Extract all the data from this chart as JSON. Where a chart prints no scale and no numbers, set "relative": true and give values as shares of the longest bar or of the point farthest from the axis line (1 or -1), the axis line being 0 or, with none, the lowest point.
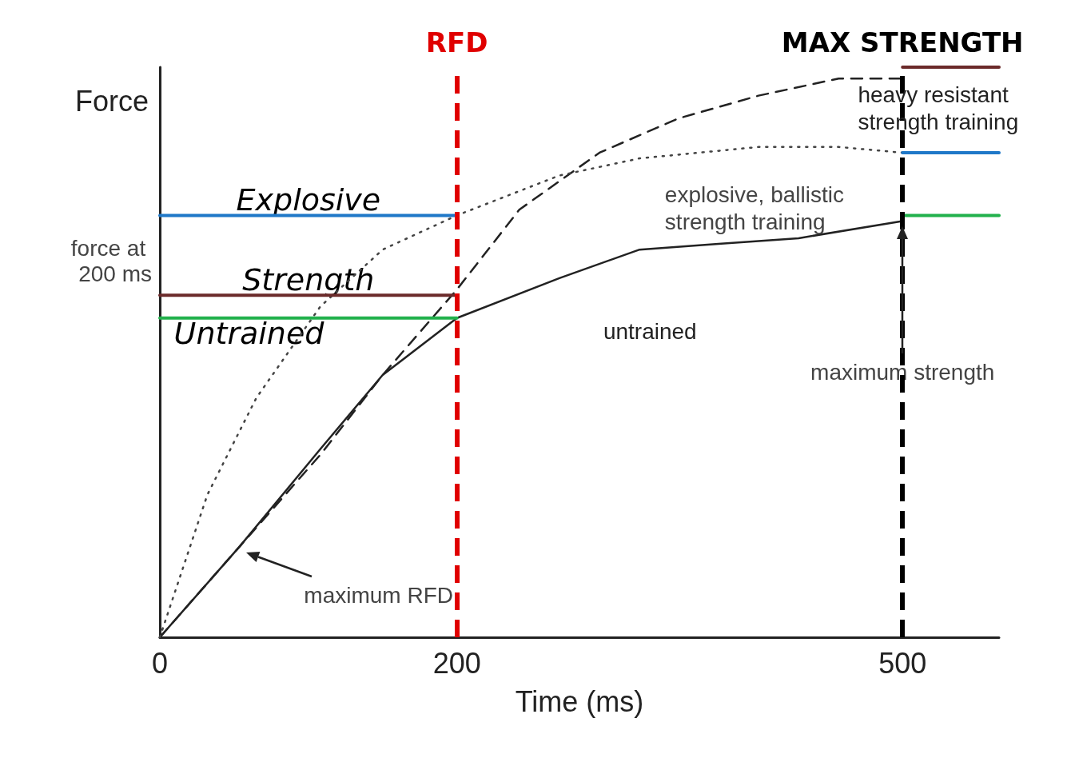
{
  "chart_data": {
    "type": "line",
    "relative": true,
    "xlabel": "Time (ms)",
    "ylabel": "Force",
    "xlim": [
      0,
      565
    ],
    "xticks": [
      0,
      200,
      500
    ],
    "marker": "none",
    "x": [
      0,
      54,
      108,
      150,
      200,
      269,
      323,
      376,
      430,
      500
    ],
    "series": [
      {
        "name": "untrained",
        "color": "#222222",
        "line_style": "solid",
        "values": [
          0,
          0.16,
          0.33,
          0.46,
          0.56,
          0.63,
          0.68,
          0.69,
          0.7,
          0.73
        ]
      },
      {
        "name": "heavy resistant strength training",
        "color": "#222222",
        "line_style": "dashed",
        "x": [
          0,
          54,
          108,
          150,
          200,
          242,
          296,
          349,
          403,
          457,
          500
        ],
        "values": [
          0,
          0.16,
          0.32,
          0.46,
          0.61,
          0.75,
          0.85,
          0.91,
          0.95,
          0.98,
          0.98
        ]
      },
      {
        "name": "explosive, ballistic strength training",
        "color": "#444444",
        "line_style": "dotted",
        "x": [
          0,
          32,
          65,
          108,
          150,
          200,
          269,
          323,
          403,
          457,
          500
        ],
        "values": [
          0,
          0.25,
          0.42,
          0.58,
          0.68,
          0.74,
          0.81,
          0.84,
          0.86,
          0.86,
          0.85
        ]
      },
      {
        "color": "#1f78c8",
        "line_style": "solid",
        "x": [
          0,
          200,
          350,
          500,
          565
        ],
        "values": [
          0.74,
          0.74,
          null,
          0.85,
          0.85
        ]
      },
      {
        "color": "#6b2a2a",
        "line_style": "solid",
        "x": [
          0,
          200,
          350,
          500,
          565
        ],
        "values": [
          0.6,
          0.6,
          null,
          1,
          1
        ]
      },
      {
        "color": "#22b14c",
        "line_style": "solid",
        "x": [
          0,
          200,
          350,
          500,
          565
        ],
        "values": [
          0.56,
          0.56,
          null,
          0.74,
          0.74
        ]
      }
    ],
    "ref_lines": [
      {
        "axis": "x",
        "value": 200,
        "label": "RFD",
        "color": "#e00000",
        "line_style": "dashed"
      },
      {
        "axis": "x",
        "value": 500,
        "label": "MAX STRENGTH",
        "color": "#000000",
        "line_style": "dashed"
      }
    ],
    "annotations": [
      "force at 200 ms",
      "maximum RFD",
      "maximum strength",
      "Explosive",
      "Strength",
      "Untrained"
    ]
  }
}
